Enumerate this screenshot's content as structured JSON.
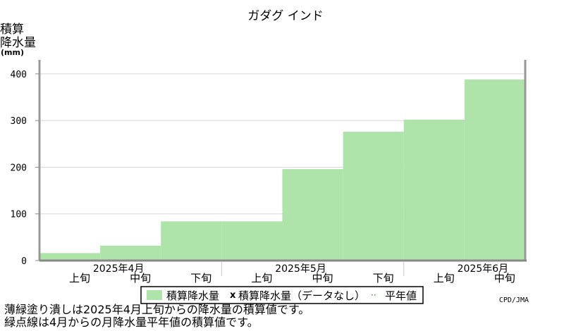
{
  "chart_data": {
    "type": "bar",
    "title": "ガダグ インド",
    "ylabel_lines": [
      "積算",
      "降水量",
      "(mm)"
    ],
    "ylim": [
      0,
      430
    ],
    "yticks": [
      0,
      100,
      200,
      300,
      400
    ],
    "grid": true,
    "periods": [
      "上旬",
      "中旬",
      "下旬",
      "上旬",
      "中旬",
      "下旬",
      "上旬",
      "中旬"
    ],
    "months": [
      "2025年4月",
      "2025年5月",
      "2025年6月"
    ],
    "series": [
      {
        "name": "積算降水量",
        "color": "#aee3aa",
        "values": [
          16,
          32,
          84,
          84,
          196,
          276,
          302,
          388
        ]
      }
    ],
    "legend": {
      "placement": "bottom-center",
      "items": [
        {
          "label": "積算降水量",
          "marker": "swatch",
          "color": "#aee3aa"
        },
        {
          "label": "積算降水量（データなし）",
          "marker": "x"
        },
        {
          "label": "平年値",
          "marker": "dots"
        }
      ]
    }
  },
  "footer": {
    "credit": "CPD/JMA",
    "note1": "薄緑塗り潰しは2025年4月上旬からの降水量の積算値です。",
    "note2": "緑点線は4月からの月降水量平年値の積算値です。"
  }
}
